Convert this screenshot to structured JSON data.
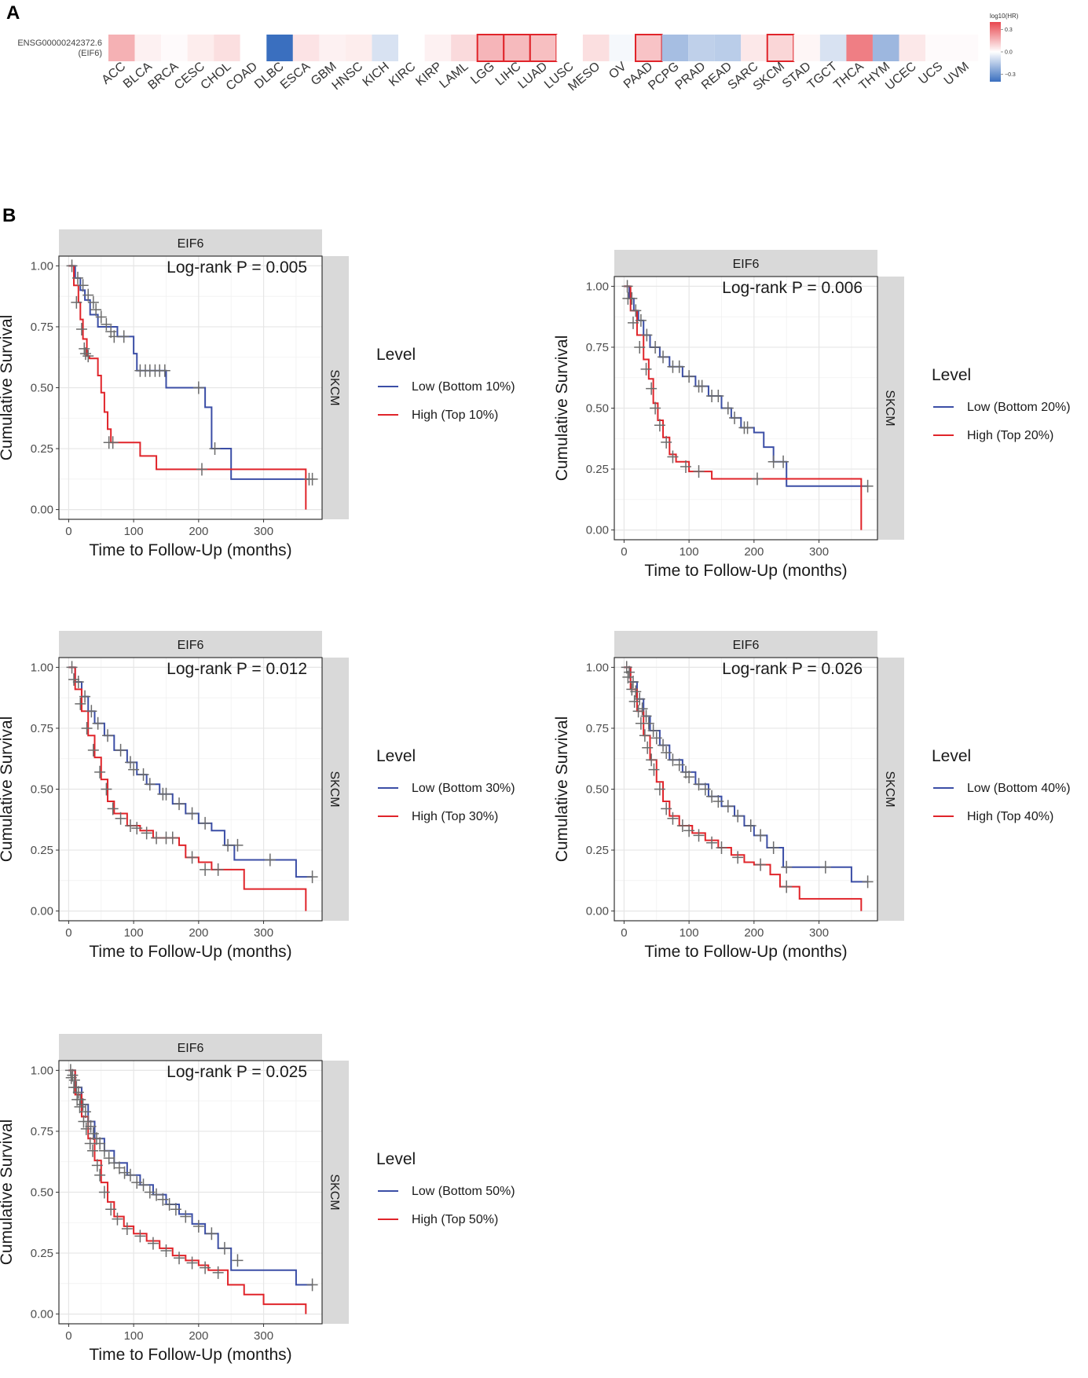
{
  "panel_a": {
    "letter": "A",
    "gene_label": [
      "ENSG00000242372.6",
      "(EIF6)"
    ],
    "colorbar": {
      "title": "log10(HR)",
      "ticks": [
        "0.3",
        "0.0",
        "−0.3"
      ],
      "tick_values": [
        0.3,
        0.0,
        -0.3
      ],
      "min": -0.4,
      "max": 0.4,
      "colors": {
        "low": "#3a6fbf",
        "mid": "#ffffff",
        "high": "#e8474f"
      }
    }
  },
  "panel_b": {
    "letter": "B"
  },
  "chart_data": [
    {
      "type": "heatmap",
      "title": "",
      "row": "ENSG00000242372.6 (EIF6)",
      "categories": [
        "ACC",
        "BLCA",
        "BRCA",
        "CESC",
        "CHOL",
        "COAD",
        "DLBC",
        "ESCA",
        "GBM",
        "HNSC",
        "KICH",
        "KIRC",
        "KIRP",
        "LAML",
        "LGG",
        "LIHC",
        "LUAD",
        "LUSC",
        "MESO",
        "OV",
        "PAAD",
        "PCPG",
        "PRAD",
        "READ",
        "SARC",
        "SKCM",
        "STAD",
        "TGCT",
        "THCA",
        "THYM",
        "UCEC",
        "UCS",
        "UVM"
      ],
      "values": [
        0.17,
        0.03,
        0.01,
        0.04,
        0.07,
        0.0,
        -0.4,
        0.06,
        0.03,
        0.04,
        -0.08,
        0.0,
        0.03,
        0.08,
        0.16,
        0.15,
        0.14,
        0.0,
        0.07,
        -0.02,
        0.13,
        -0.18,
        -0.13,
        -0.14,
        0.05,
        0.09,
        0.02,
        -0.08,
        0.28,
        -0.2,
        0.05,
        0.01,
        0.01
      ],
      "significant": [
        "LGG",
        "LIHC",
        "LUAD",
        "PAAD",
        "SKCM"
      ],
      "legend_title": "log10(HR)"
    },
    {
      "type": "line",
      "subtype": "kaplan-meier",
      "strip_top": "EIF6",
      "strip_right": "SKCM",
      "annotation": "Log-rank P = 0.005",
      "xlabel": "Time to Follow-Up (months)",
      "ylabel": "Cumulative Survival",
      "xlim": [
        -15,
        390
      ],
      "ylim": [
        -0.04,
        1.04
      ],
      "xticks": [
        0,
        100,
        200,
        300
      ],
      "yticks": [
        0.0,
        0.25,
        0.5,
        0.75,
        1.0
      ],
      "legend_title": "Level",
      "series": [
        {
          "name": "Low (Bottom 10%)",
          "color": "#3b4ea6",
          "x": [
            0,
            10,
            18,
            25,
            33,
            45,
            75,
            100,
            105,
            150,
            210,
            220,
            250,
            370
          ],
          "y": [
            1.0,
            0.95,
            0.9,
            0.86,
            0.8,
            0.75,
            0.71,
            0.64,
            0.57,
            0.5,
            0.42,
            0.25,
            0.125,
            0.125
          ],
          "censor_x": [
            5,
            14,
            22,
            30,
            38,
            42,
            50,
            58,
            65,
            70,
            85,
            110,
            118,
            125,
            133,
            140,
            148,
            200,
            225,
            375
          ],
          "censor_y": [
            1.0,
            0.95,
            0.92,
            0.88,
            0.85,
            0.82,
            0.79,
            0.76,
            0.73,
            0.71,
            0.71,
            0.57,
            0.57,
            0.57,
            0.57,
            0.57,
            0.57,
            0.5,
            0.25,
            0.125
          ]
        },
        {
          "name": "High (Top 10%)",
          "color": "#e0242a",
          "x": [
            0,
            8,
            15,
            18,
            22,
            28,
            32,
            45,
            50,
            55,
            60,
            65,
            110,
            135,
            365
          ],
          "y": [
            1.0,
            0.92,
            0.85,
            0.78,
            0.7,
            0.63,
            0.62,
            0.55,
            0.48,
            0.4,
            0.33,
            0.275,
            0.22,
            0.165,
            0.0
          ],
          "censor_x": [
            12,
            20,
            24,
            26,
            30,
            62,
            68,
            205,
            370
          ],
          "censor_y": [
            0.85,
            0.74,
            0.66,
            0.64,
            0.63,
            0.275,
            0.275,
            0.165,
            0.125
          ]
        }
      ]
    },
    {
      "type": "line",
      "subtype": "kaplan-meier",
      "strip_top": "EIF6",
      "strip_right": "SKCM",
      "annotation": "Log-rank P = 0.006",
      "xlabel": "Time to Follow-Up (months)",
      "ylabel": "Cumulative Survival",
      "xlim": [
        -15,
        390
      ],
      "ylim": [
        -0.04,
        1.04
      ],
      "xticks": [
        0,
        100,
        200,
        300
      ],
      "yticks": [
        0.0,
        0.25,
        0.5,
        0.75,
        1.0
      ],
      "legend_title": "Level",
      "series": [
        {
          "name": "Low (Bottom 20%)",
          "color": "#3b4ea6",
          "x": [
            0,
            8,
            15,
            22,
            30,
            40,
            55,
            70,
            90,
            110,
            130,
            150,
            165,
            180,
            200,
            215,
            230,
            250,
            375
          ],
          "y": [
            1.0,
            0.95,
            0.9,
            0.86,
            0.8,
            0.75,
            0.71,
            0.67,
            0.63,
            0.59,
            0.55,
            0.5,
            0.46,
            0.42,
            0.4,
            0.34,
            0.28,
            0.18,
            0.18
          ],
          "censor_x": [
            5,
            12,
            18,
            26,
            35,
            48,
            60,
            75,
            85,
            100,
            115,
            120,
            135,
            145,
            160,
            170,
            185,
            190,
            230,
            245,
            375
          ],
          "censor_y": [
            1.0,
            0.95,
            0.9,
            0.86,
            0.8,
            0.75,
            0.71,
            0.67,
            0.67,
            0.63,
            0.59,
            0.59,
            0.55,
            0.55,
            0.5,
            0.46,
            0.42,
            0.42,
            0.28,
            0.28,
            0.18
          ]
        },
        {
          "name": "High (Top 20%)",
          "color": "#e0242a",
          "x": [
            0,
            10,
            20,
            30,
            38,
            45,
            52,
            60,
            70,
            80,
            100,
            135,
            365
          ],
          "y": [
            1.0,
            0.9,
            0.8,
            0.7,
            0.62,
            0.52,
            0.45,
            0.38,
            0.31,
            0.28,
            0.24,
            0.21,
            0.0
          ],
          "censor_x": [
            6,
            14,
            24,
            34,
            42,
            48,
            55,
            65,
            75,
            95,
            115,
            205
          ],
          "censor_y": [
            0.95,
            0.85,
            0.75,
            0.66,
            0.58,
            0.5,
            0.43,
            0.36,
            0.3,
            0.26,
            0.24,
            0.21
          ]
        }
      ]
    },
    {
      "type": "line",
      "subtype": "kaplan-meier",
      "strip_top": "EIF6",
      "strip_right": "SKCM",
      "annotation": "Log-rank P = 0.012",
      "xlabel": "Time to Follow-Up (months)",
      "ylabel": "Cumulative Survival",
      "xlim": [
        -15,
        390
      ],
      "ylim": [
        -0.04,
        1.04
      ],
      "xticks": [
        0,
        100,
        200,
        300
      ],
      "yticks": [
        0.0,
        0.25,
        0.5,
        0.75,
        1.0
      ],
      "legend_title": "Level",
      "series": [
        {
          "name": "Low (Bottom 30%)",
          "color": "#3b4ea6",
          "x": [
            0,
            10,
            20,
            30,
            40,
            55,
            70,
            90,
            105,
            120,
            140,
            160,
            180,
            200,
            220,
            240,
            255,
            300,
            350,
            375
          ],
          "y": [
            1.0,
            0.94,
            0.88,
            0.82,
            0.77,
            0.72,
            0.66,
            0.61,
            0.56,
            0.52,
            0.48,
            0.44,
            0.4,
            0.36,
            0.33,
            0.27,
            0.21,
            0.21,
            0.14,
            0.14
          ],
          "censor_x": [
            5,
            15,
            25,
            35,
            45,
            60,
            80,
            95,
            100,
            115,
            125,
            145,
            150,
            170,
            190,
            210,
            245,
            260,
            310,
            375
          ],
          "censor_y": [
            1.0,
            0.94,
            0.88,
            0.82,
            0.77,
            0.72,
            0.66,
            0.61,
            0.58,
            0.56,
            0.52,
            0.48,
            0.48,
            0.44,
            0.4,
            0.36,
            0.27,
            0.27,
            0.21,
            0.14
          ]
        },
        {
          "name": "High (Top 30%)",
          "color": "#e0242a",
          "x": [
            0,
            10,
            20,
            30,
            40,
            50,
            60,
            70,
            90,
            110,
            130,
            170,
            180,
            200,
            220,
            270,
            365
          ],
          "y": [
            1.0,
            0.91,
            0.82,
            0.72,
            0.63,
            0.54,
            0.45,
            0.4,
            0.35,
            0.33,
            0.3,
            0.27,
            0.22,
            0.2,
            0.17,
            0.09,
            0.0
          ],
          "censor_x": [
            8,
            18,
            28,
            38,
            48,
            58,
            68,
            80,
            95,
            105,
            120,
            135,
            150,
            160,
            190,
            210,
            230
          ],
          "censor_y": [
            0.95,
            0.85,
            0.75,
            0.66,
            0.57,
            0.5,
            0.42,
            0.38,
            0.35,
            0.34,
            0.32,
            0.3,
            0.3,
            0.3,
            0.22,
            0.17,
            0.17
          ]
        }
      ]
    },
    {
      "type": "line",
      "subtype": "kaplan-meier",
      "strip_top": "EIF6",
      "strip_right": "SKCM",
      "annotation": "Log-rank P = 0.026",
      "xlabel": "Time to Follow-Up (months)",
      "ylabel": "Cumulative Survival",
      "xlim": [
        -15,
        390
      ],
      "ylim": [
        -0.04,
        1.04
      ],
      "xticks": [
        0,
        100,
        200,
        300
      ],
      "yticks": [
        0.0,
        0.25,
        0.5,
        0.75,
        1.0
      ],
      "legend_title": "Level",
      "series": [
        {
          "name": "Low (Bottom 40%)",
          "color": "#3b4ea6",
          "x": [
            0,
            10,
            20,
            30,
            40,
            55,
            70,
            90,
            110,
            130,
            150,
            170,
            185,
            200,
            220,
            245,
            300,
            350,
            375
          ],
          "y": [
            1.0,
            0.94,
            0.87,
            0.8,
            0.74,
            0.68,
            0.62,
            0.57,
            0.52,
            0.47,
            0.43,
            0.39,
            0.35,
            0.31,
            0.26,
            0.18,
            0.18,
            0.12,
            0.12
          ],
          "censor_x": [
            4,
            8,
            14,
            18,
            24,
            28,
            34,
            38,
            45,
            50,
            60,
            65,
            75,
            85,
            95,
            100,
            115,
            125,
            135,
            145,
            160,
            175,
            195,
            210,
            230,
            250,
            310,
            375
          ],
          "censor_y": [
            1.0,
            0.98,
            0.94,
            0.9,
            0.87,
            0.83,
            0.8,
            0.77,
            0.74,
            0.71,
            0.68,
            0.65,
            0.62,
            0.6,
            0.57,
            0.55,
            0.52,
            0.5,
            0.47,
            0.45,
            0.43,
            0.39,
            0.35,
            0.31,
            0.26,
            0.18,
            0.18,
            0.12
          ]
        },
        {
          "name": "High (Top 40%)",
          "color": "#e0242a",
          "x": [
            0,
            10,
            20,
            30,
            40,
            50,
            60,
            70,
            85,
            105,
            125,
            145,
            165,
            185,
            200,
            225,
            240,
            270,
            365
          ],
          "y": [
            1.0,
            0.91,
            0.82,
            0.72,
            0.62,
            0.53,
            0.45,
            0.39,
            0.35,
            0.32,
            0.29,
            0.26,
            0.23,
            0.2,
            0.19,
            0.15,
            0.1,
            0.05,
            0.0
          ],
          "censor_x": [
            6,
            12,
            16,
            22,
            26,
            32,
            36,
            42,
            46,
            55,
            65,
            75,
            90,
            100,
            115,
            135,
            150,
            175,
            210,
            250
          ],
          "censor_y": [
            0.96,
            0.91,
            0.86,
            0.82,
            0.77,
            0.72,
            0.67,
            0.62,
            0.58,
            0.5,
            0.42,
            0.38,
            0.35,
            0.33,
            0.31,
            0.28,
            0.26,
            0.22,
            0.19,
            0.1
          ]
        }
      ]
    },
    {
      "type": "line",
      "subtype": "kaplan-meier",
      "strip_top": "EIF6",
      "strip_right": "SKCM",
      "annotation": "Log-rank P = 0.025",
      "xlabel": "Time to Follow-Up (months)",
      "ylabel": "Cumulative Survival",
      "xlim": [
        -15,
        390
      ],
      "ylim": [
        -0.04,
        1.04
      ],
      "xticks": [
        0,
        100,
        200,
        300
      ],
      "yticks": [
        0.0,
        0.25,
        0.5,
        0.75,
        1.0
      ],
      "legend_title": "Level",
      "series": [
        {
          "name": "Low (Bottom 50%)",
          "color": "#3b4ea6",
          "x": [
            0,
            10,
            20,
            30,
            40,
            55,
            70,
            90,
            110,
            130,
            150,
            170,
            190,
            210,
            230,
            250,
            300,
            350,
            375
          ],
          "y": [
            1.0,
            0.93,
            0.86,
            0.79,
            0.72,
            0.67,
            0.62,
            0.57,
            0.53,
            0.49,
            0.45,
            0.41,
            0.37,
            0.33,
            0.27,
            0.18,
            0.18,
            0.12,
            0.12
          ],
          "censor_x": [
            3,
            6,
            9,
            12,
            15,
            18,
            22,
            26,
            30,
            34,
            38,
            43,
            48,
            55,
            62,
            70,
            78,
            86,
            95,
            105,
            115,
            125,
            135,
            145,
            155,
            165,
            180,
            200,
            220,
            240,
            260,
            375
          ],
          "censor_y": [
            1.0,
            0.98,
            0.96,
            0.93,
            0.91,
            0.88,
            0.86,
            0.83,
            0.79,
            0.77,
            0.74,
            0.72,
            0.7,
            0.67,
            0.64,
            0.62,
            0.6,
            0.58,
            0.57,
            0.54,
            0.53,
            0.5,
            0.49,
            0.47,
            0.45,
            0.43,
            0.4,
            0.36,
            0.33,
            0.27,
            0.22,
            0.12
          ]
        },
        {
          "name": "High (Top 50%)",
          "color": "#e0242a",
          "x": [
            0,
            10,
            20,
            30,
            40,
            50,
            60,
            70,
            85,
            100,
            120,
            140,
            160,
            180,
            200,
            215,
            245,
            270,
            300,
            365
          ],
          "y": [
            1.0,
            0.9,
            0.81,
            0.72,
            0.63,
            0.54,
            0.46,
            0.4,
            0.36,
            0.33,
            0.3,
            0.27,
            0.24,
            0.22,
            0.2,
            0.18,
            0.12,
            0.08,
            0.04,
            0.0
          ],
          "censor_x": [
            4,
            8,
            13,
            17,
            23,
            27,
            33,
            37,
            44,
            48,
            55,
            65,
            75,
            90,
            110,
            130,
            150,
            170,
            190,
            210,
            230
          ],
          "censor_y": [
            0.97,
            0.93,
            0.88,
            0.85,
            0.79,
            0.76,
            0.7,
            0.67,
            0.61,
            0.57,
            0.5,
            0.43,
            0.39,
            0.35,
            0.32,
            0.29,
            0.26,
            0.23,
            0.21,
            0.19,
            0.17
          ]
        }
      ]
    }
  ]
}
